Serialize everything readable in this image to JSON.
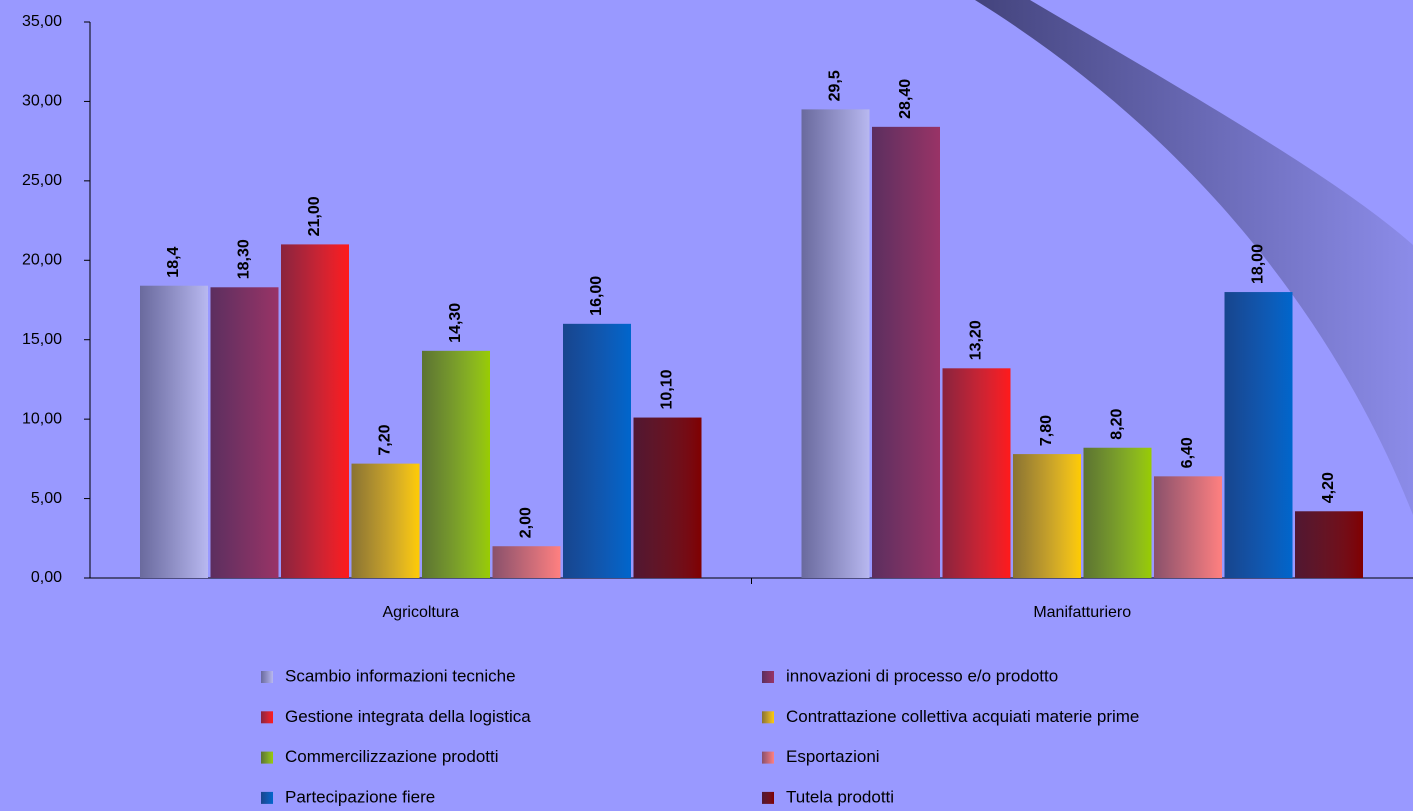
{
  "chart_data": {
    "type": "bar",
    "categories": [
      "Agricoltura",
      "Manifatturiero"
    ],
    "series": [
      {
        "name": "Scambio informazioni tecniche",
        "color": "#b8b8f0",
        "values": [
          18.4,
          29.5
        ],
        "value_labels": [
          "18,4",
          "29,5"
        ]
      },
      {
        "name": "innovazioni di processo e/o prodotto",
        "color": "#993366",
        "values": [
          18.3,
          28.4
        ],
        "value_labels": [
          "18,30",
          "28,40"
        ]
      },
      {
        "name": "Gestione integrata della logistica",
        "color": "#ff1a1a",
        "values": [
          21.0,
          13.2
        ],
        "value_labels": [
          "21,00",
          "13,20"
        ]
      },
      {
        "name": "Contrattazione collettiva acquiati materie prime",
        "color": "#ffcc00",
        "values": [
          7.2,
          7.8
        ],
        "value_labels": [
          "7,20",
          "7,80"
        ]
      },
      {
        "name": "Commercilizzazione prodotti",
        "color": "#99cc00",
        "values": [
          14.3,
          8.2
        ],
        "value_labels": [
          "14,30",
          "8,20"
        ]
      },
      {
        "name": "Esportazioni",
        "color": "#ff8080",
        "values": [
          2.0,
          6.4
        ],
        "value_labels": [
          "2,00",
          "6,40"
        ]
      },
      {
        "name": "Partecipazione fiere",
        "color": "#0066cc",
        "values": [
          16.0,
          18.0
        ],
        "value_labels": [
          "16,00",
          "18,00"
        ]
      },
      {
        "name": "Tutela prodotti",
        "color": "#800000",
        "values": [
          10.1,
          4.2
        ],
        "value_labels": [
          "10,10",
          "4,20"
        ]
      }
    ],
    "ylim": [
      0,
      35
    ],
    "yticks": [
      {
        "value": 0,
        "label": "0,00"
      },
      {
        "value": 5,
        "label": "5,00"
      },
      {
        "value": 10,
        "label": "10,00"
      },
      {
        "value": 15,
        "label": "15,00"
      },
      {
        "value": 20,
        "label": "20,00"
      },
      {
        "value": 25,
        "label": "25,00"
      },
      {
        "value": 30,
        "label": "30,00"
      },
      {
        "value": 35,
        "label": "35,00"
      }
    ],
    "grid": false,
    "legend": "bottom"
  }
}
